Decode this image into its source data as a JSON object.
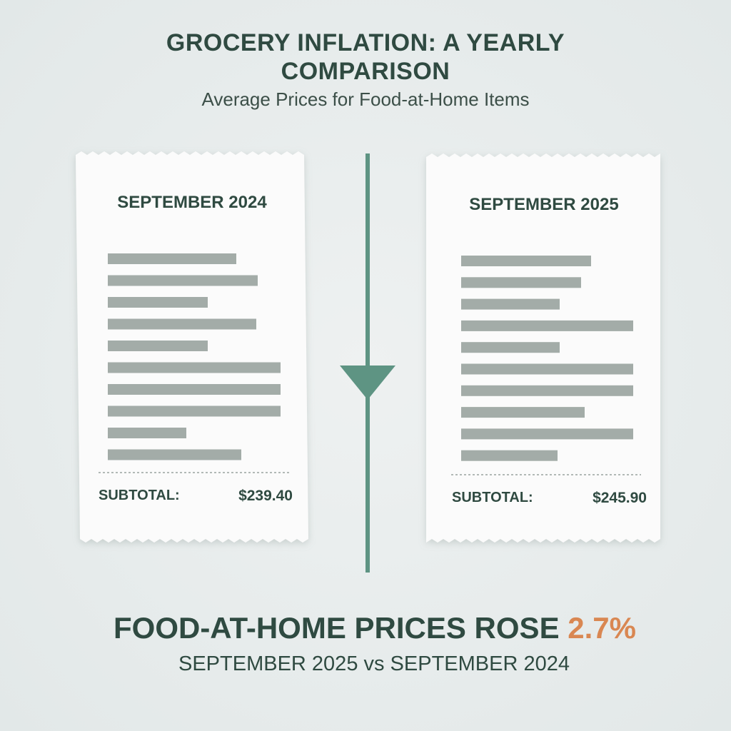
{
  "header": {
    "title": "GROCERY INFLATION: A YEARLY COMPARISON",
    "subtitle": "Average Prices for Food-at-Home Items"
  },
  "receipts": [
    {
      "period": "SEPTEMBER 2024",
      "subtotal_label": "SUBTOTAL:",
      "subtotal": "$239.40"
    },
    {
      "period": "SEPTEMBER 2025",
      "subtotal_label": "SUBTOTAL:",
      "subtotal": "$245.90"
    }
  ],
  "headline": {
    "text": "FOOD-AT-HOME PRICES ROSE",
    "highlight": "2.7%"
  },
  "footer": "SEPTEMBER 2025 vs SEPTEMBER 2024"
}
